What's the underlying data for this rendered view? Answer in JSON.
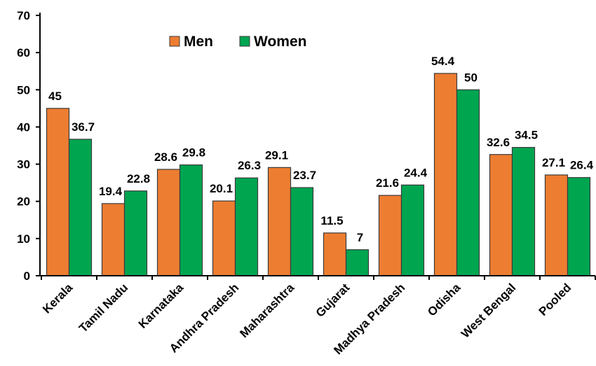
{
  "chart_data": {
    "type": "bar",
    "categories": [
      "Kerala",
      "Tamil Nadu",
      "Karnataka",
      "Andhra Pradesh",
      "Maharashtra",
      "Gujarat",
      "Madhya Pradesh",
      "Odisha",
      "West Bengal",
      "Pooled"
    ],
    "series": [
      {
        "name": "Men",
        "color": "#ed7d31",
        "values": [
          45,
          19.4,
          28.6,
          20.1,
          29.1,
          11.5,
          21.6,
          54.4,
          32.6,
          27.1
        ],
        "labels": [
          "45",
          "19.4",
          "28.6",
          "20.1",
          "29.1",
          "11.5",
          "21.6",
          "54.4",
          "32.6",
          "27.1"
        ]
      },
      {
        "name": "Women",
        "color": "#00a550",
        "values": [
          36.7,
          22.8,
          29.8,
          26.3,
          23.7,
          7,
          24.4,
          50,
          34.5,
          26.4
        ],
        "labels": [
          "36.7",
          "22.8",
          "29.8",
          "26.3",
          "23.7",
          "7",
          "24.4",
          "50",
          "34.5",
          "26.4"
        ]
      }
    ],
    "yticks": [
      "0",
      "10",
      "20",
      "30",
      "40",
      "50",
      "60",
      "70"
    ],
    "ylim": [
      0,
      70
    ],
    "title": "",
    "xlabel": "",
    "ylabel": "",
    "grid": false,
    "legend_position": "top-center"
  }
}
